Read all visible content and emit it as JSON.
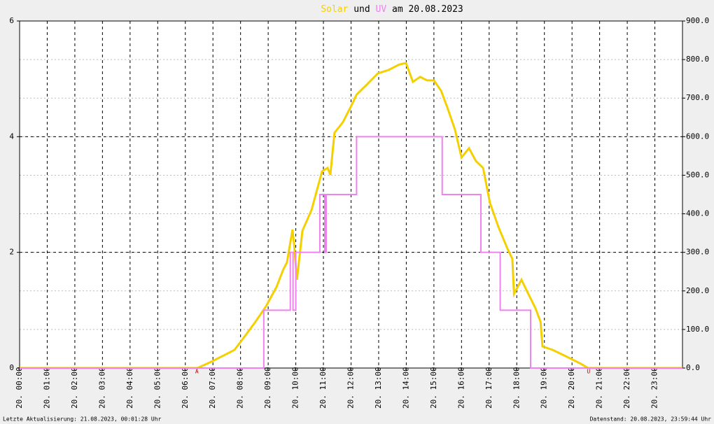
{
  "chart_data": {
    "type": "line",
    "title_connector": "und",
    "title_suffix": "am 20.08.2023",
    "xlim": [
      0,
      24
    ],
    "xticks": [
      {
        "value": 0,
        "label": "20. 00:00"
      },
      {
        "value": 1,
        "label": "20. 01:00"
      },
      {
        "value": 2,
        "label": "20. 02:00"
      },
      {
        "value": 3,
        "label": "20. 03:00"
      },
      {
        "value": 4,
        "label": "20. 04:00"
      },
      {
        "value": 5,
        "label": "20. 05:00"
      },
      {
        "value": 6,
        "label": "20. 06:00"
      },
      {
        "value": 7,
        "label": "20. 07:00"
      },
      {
        "value": 8,
        "label": "20. 08:00"
      },
      {
        "value": 9,
        "label": "20. 09:00"
      },
      {
        "value": 10,
        "label": "20. 10:00"
      },
      {
        "value": 11,
        "label": "20. 11:00"
      },
      {
        "value": 12,
        "label": "20. 12:00"
      },
      {
        "value": 13,
        "label": "20. 13:00"
      },
      {
        "value": 14,
        "label": "20. 14:00"
      },
      {
        "value": 15,
        "label": "20. 15:00"
      },
      {
        "value": 16,
        "label": "20. 16:00"
      },
      {
        "value": 17,
        "label": "20. 17:00"
      },
      {
        "value": 18,
        "label": "20. 18:00"
      },
      {
        "value": 19,
        "label": "20. 19:00"
      },
      {
        "value": 20,
        "label": "20. 20:00"
      },
      {
        "value": 21,
        "label": "20. 21:00"
      },
      {
        "value": 22,
        "label": "20. 22:00"
      },
      {
        "value": 23,
        "label": "20. 23:00"
      }
    ],
    "ylim": [
      0,
      6
    ],
    "yticks": [
      0,
      2,
      4,
      6
    ],
    "y2lim": [
      0,
      900
    ],
    "y2ticks": [
      {
        "value": 0,
        "label": "0.0"
      },
      {
        "value": 100,
        "label": "100.0"
      },
      {
        "value": 200,
        "label": "200.0"
      },
      {
        "value": 300,
        "label": "300.0"
      },
      {
        "value": 400,
        "label": "400.0"
      },
      {
        "value": 500,
        "label": "500.0"
      },
      {
        "value": 600,
        "label": "600.0"
      },
      {
        "value": 700,
        "label": "700.0"
      },
      {
        "value": 800,
        "label": "800.0"
      },
      {
        "value": 900,
        "label": "900.0"
      }
    ],
    "grid": true,
    "series": [
      {
        "name": "Solar",
        "color": "#f5d000",
        "axis": "y2",
        "x": [
          0,
          6.44,
          6.9,
          7.4,
          7.78,
          8.16,
          8.54,
          8.92,
          9.3,
          9.55,
          9.68,
          9.88,
          9.93,
          10.04,
          10.24,
          10.57,
          10.95,
          11.15,
          11.25,
          11.4,
          11.7,
          11.96,
          12.2,
          12.6,
          12.97,
          13.36,
          13.74,
          13.99,
          14.24,
          14.5,
          14.75,
          15.0,
          15.26,
          15.5,
          15.76,
          16.0,
          16.27,
          16.52,
          16.78,
          17.03,
          17.34,
          17.66,
          17.84,
          17.9,
          18.17,
          18.42,
          18.67,
          18.86,
          18.93,
          19.3,
          19.82,
          20.32,
          20.58,
          24
        ],
        "values": [
          0,
          0,
          15,
          33,
          47,
          83,
          120,
          160,
          210,
          256,
          274,
          359,
          328,
          229,
          356,
          410,
          510,
          519,
          501,
          610,
          637,
          673,
          709,
          737,
          764,
          773,
          787,
          791,
          742,
          755,
          746,
          746,
          719,
          673,
          619,
          546,
          570,
          537,
          519,
          428,
          365,
          310,
          283,
          192,
          229,
          192,
          156,
          120,
          56,
          47,
          29,
          11,
          0,
          0
        ]
      },
      {
        "name": "UV",
        "color": "#ee82ee",
        "axis": "y",
        "x": [
          0,
          8.84,
          8.84,
          9.02,
          9.02,
          9.8,
          9.8,
          9.9,
          9.9,
          10.0,
          10.0,
          10.87,
          10.87,
          11.05,
          11.05,
          11.1,
          11.1,
          12.2,
          12.2,
          15.3,
          15.3,
          16.7,
          16.7,
          17.4,
          17.4,
          18.5,
          18.5,
          24
        ],
        "values": [
          0,
          0,
          1,
          1,
          1,
          1,
          2,
          2,
          1,
          1,
          2,
          2,
          3,
          3,
          2,
          2,
          3,
          3,
          4,
          4,
          3,
          3,
          2,
          2,
          1,
          1,
          0,
          0
        ]
      }
    ],
    "annotations": [
      {
        "text": "A",
        "x": 6.42
      },
      {
        "text": "U",
        "x": 20.6
      }
    ],
    "footer_left": "Letzte Aktualisierung: 21.08.2023, 00:01:28 Uhr",
    "footer_right": "Datenstand: 20.08.2023, 23:59:44 Uhr"
  }
}
